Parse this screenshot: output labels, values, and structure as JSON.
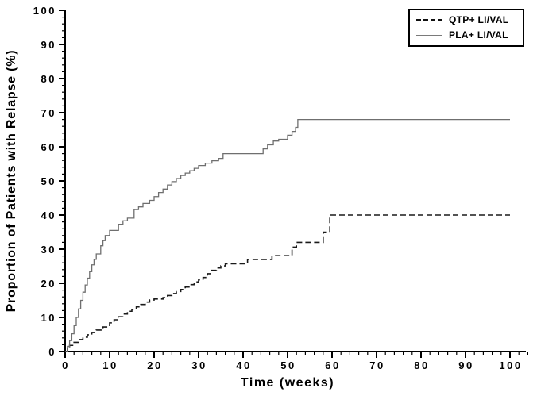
{
  "figure": {
    "background": "#ffffff"
  },
  "chart_data": {
    "type": "line",
    "subtype": "step",
    "title": "",
    "xlabel": "Time (weeks)",
    "ylabel": "Proportion of Patients with Relapse (%)",
    "xlim": [
      0,
      100
    ],
    "ylim": [
      0,
      100
    ],
    "x_major_ticks": [
      0,
      10,
      20,
      30,
      40,
      50,
      60,
      70,
      80,
      90,
      100
    ],
    "y_major_ticks": [
      0,
      10,
      20,
      30,
      40,
      50,
      60,
      70,
      80,
      90,
      100
    ],
    "minor_tick_interval": 2,
    "grid": false,
    "legend_position": "top-right",
    "axis_color": "#000000",
    "series": [
      {
        "name": "QTP+ LI/VAL",
        "line_style": "dashed",
        "color": "#1a1a1a",
        "points": [
          [
            0,
            0
          ],
          [
            0.5,
            0.9
          ],
          [
            1,
            1.8
          ],
          [
            2,
            2.7
          ],
          [
            3,
            3.5
          ],
          [
            4,
            4.2
          ],
          [
            5,
            4.9
          ],
          [
            6,
            5.6
          ],
          [
            7,
            6.3
          ],
          [
            8.5,
            7.2
          ],
          [
            10,
            8.4
          ],
          [
            11,
            9.3
          ],
          [
            12,
            10.2
          ],
          [
            13,
            11
          ],
          [
            14,
            11.8
          ],
          [
            15,
            12.3
          ],
          [
            16,
            13.1
          ],
          [
            17,
            13.8
          ],
          [
            18,
            14.5
          ],
          [
            19,
            15.1
          ],
          [
            20,
            15.4
          ],
          [
            22,
            15.8
          ],
          [
            23,
            16.4
          ],
          [
            24,
            17
          ],
          [
            25,
            17.6
          ],
          [
            26,
            18.2
          ],
          [
            27,
            18.9
          ],
          [
            28,
            19.6
          ],
          [
            29,
            20.4
          ],
          [
            30,
            21
          ],
          [
            31,
            21.7
          ],
          [
            32,
            22.8
          ],
          [
            33,
            23.8
          ],
          [
            34,
            24.5
          ],
          [
            35,
            25.1
          ],
          [
            36,
            25.7
          ],
          [
            41,
            27
          ],
          [
            46.5,
            28.1
          ],
          [
            51,
            30.6
          ],
          [
            52,
            32
          ],
          [
            58,
            35
          ],
          [
            59.5,
            40
          ],
          [
            100,
            40
          ]
        ]
      },
      {
        "name": "PLA+ LI/VAL",
        "line_style": "solid",
        "color": "#6f6f6f",
        "points": [
          [
            0,
            0
          ],
          [
            0.5,
            1.5
          ],
          [
            1,
            3.2
          ],
          [
            1.5,
            5.2
          ],
          [
            2,
            7.6
          ],
          [
            2.5,
            10
          ],
          [
            3,
            12.5
          ],
          [
            3.5,
            15
          ],
          [
            4,
            17.4
          ],
          [
            4.5,
            19.5
          ],
          [
            5,
            21.5
          ],
          [
            5.5,
            23.4
          ],
          [
            6,
            25.4
          ],
          [
            6.5,
            27
          ],
          [
            7,
            28.6
          ],
          [
            8,
            31
          ],
          [
            8.5,
            32.5
          ],
          [
            9,
            34
          ],
          [
            10,
            35.5
          ],
          [
            12,
            37.3
          ],
          [
            13,
            38.3
          ],
          [
            14,
            39.1
          ],
          [
            15.5,
            41.6
          ],
          [
            16.5,
            42.4
          ],
          [
            17.5,
            43.4
          ],
          [
            19,
            44.3
          ],
          [
            20,
            45.4
          ],
          [
            21,
            46.6
          ],
          [
            22,
            47.6
          ],
          [
            23,
            48.8
          ],
          [
            24,
            49.8
          ],
          [
            25,
            50.7
          ],
          [
            26,
            51.6
          ],
          [
            27,
            52.3
          ],
          [
            28,
            53
          ],
          [
            29,
            53.7
          ],
          [
            30,
            54.5
          ],
          [
            31.5,
            55.2
          ],
          [
            33,
            55.9
          ],
          [
            34.5,
            56.6
          ],
          [
            35.5,
            58
          ],
          [
            44.5,
            59.4
          ],
          [
            45.5,
            60.6
          ],
          [
            46.8,
            61.7
          ],
          [
            48,
            62.2
          ],
          [
            50,
            63.4
          ],
          [
            51,
            64.5
          ],
          [
            51.8,
            65.7
          ],
          [
            52.3,
            68
          ],
          [
            100,
            68
          ]
        ]
      }
    ]
  }
}
